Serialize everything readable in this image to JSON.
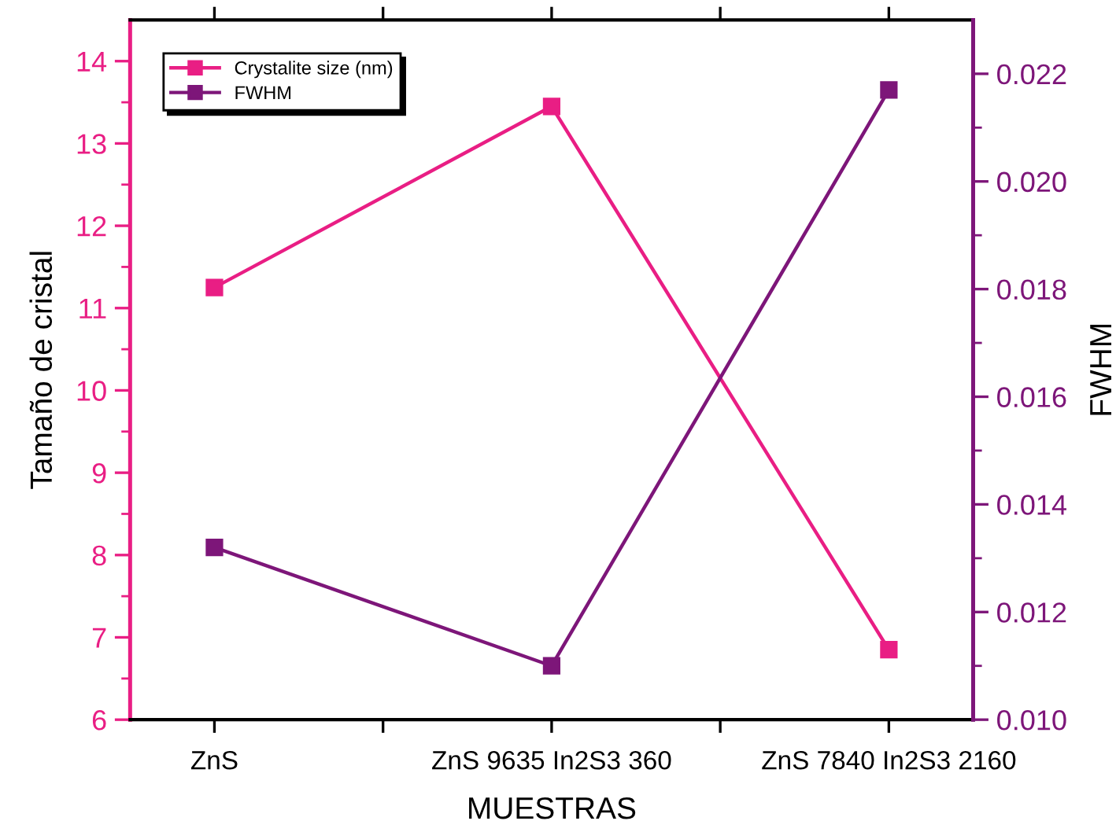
{
  "chart_data": {
    "type": "line",
    "xlabel": "MUESTRAS",
    "ylabel": "Tamaño de cristal",
    "y2label": "FWHM",
    "categories": [
      "ZnS",
      "ZnS 9635 In2S3 360",
      "ZnS 7840 In2S3 2160"
    ],
    "series": [
      {
        "name": "Crystalite size (nm)",
        "color": "#e91e84",
        "values": [
          11.25,
          13.45,
          6.85
        ]
      },
      {
        "name": "FWHM",
        "color": "#7d1679",
        "values": [
          0.0132,
          0.011,
          0.0217
        ],
        "axis": "y2"
      }
    ],
    "ylim": [
      6,
      14.5
    ],
    "yticks": [
      6,
      7,
      8,
      9,
      10,
      11,
      12,
      13,
      14
    ],
    "y2lim": [
      0.01,
      0.023
    ],
    "y2ticks": [
      {
        "value": 0.01,
        "label": "0.010"
      },
      0.012,
      0.014,
      0.016,
      0.018,
      {
        "value": 0.02,
        "label": "0.020"
      },
      0.022
    ],
    "marker": "square",
    "line_style": "solid",
    "legend": "top left",
    "grid": false
  }
}
